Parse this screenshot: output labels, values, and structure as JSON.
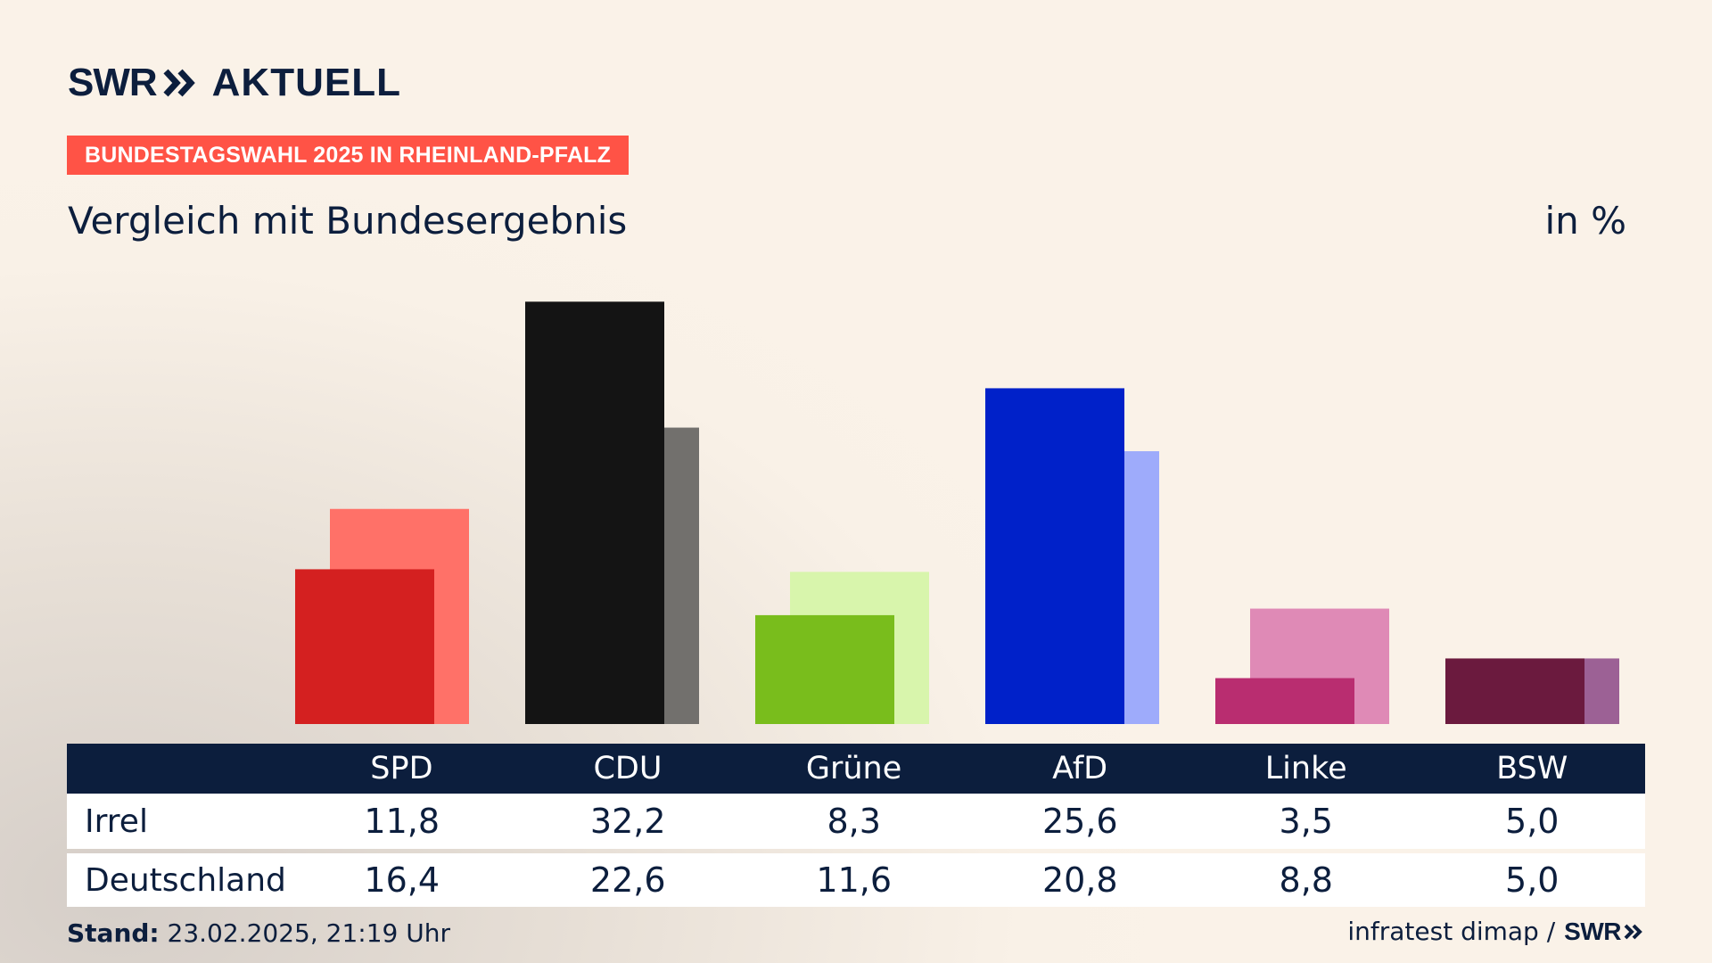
{
  "header": {
    "logo_left": "SWR",
    "logo_right": "AKTUELL",
    "banner": "BUNDESTAGSWAHL 2025 IN RHEINLAND-PFALZ"
  },
  "chart_data": {
    "type": "bar",
    "title": "Vergleich mit Bundesergebnis",
    "unit": "in %",
    "categories": [
      "SPD",
      "CDU",
      "Grüne",
      "AfD",
      "Linke",
      "BSW"
    ],
    "series": [
      {
        "name": "Irrel",
        "values": [
          11.8,
          32.2,
          8.3,
          25.6,
          3.5,
          5.0
        ],
        "display": [
          "11,8",
          "32,2",
          "8,3",
          "25,6",
          "3,5",
          "5,0"
        ]
      },
      {
        "name": "Deutschland",
        "values": [
          16.4,
          22.6,
          11.6,
          20.8,
          8.8,
          5.0
        ],
        "display": [
          "16,4",
          "22,6",
          "11,6",
          "20,8",
          "8,8",
          "5,0"
        ]
      }
    ],
    "colors_primary": [
      "#d42020",
      "#141414",
      "#79bd1c",
      "#0021c9",
      "#b92d70",
      "#6b1a3e"
    ],
    "colors_secondary": [
      "#ff7168",
      "#72706d",
      "#d8f5ac",
      "#9eabfb",
      "#df8ab6",
      "#9c6195"
    ],
    "ylim": [
      0,
      35
    ],
    "grid": false,
    "legend": "table-below"
  },
  "footer": {
    "stand_label": "Stand:",
    "stand_value": " 23.02.2025, 21:19 Uhr",
    "source": "infratest dimap /",
    "source_logo": "SWR"
  }
}
